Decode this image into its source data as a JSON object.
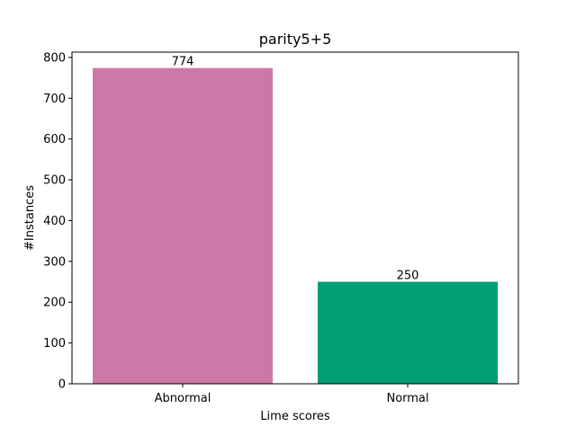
{
  "chart_data": {
    "type": "bar",
    "title": "parity5+5",
    "xlabel": "Lime scores",
    "ylabel": "#Instances",
    "categories": [
      "Abnormal",
      "Normal"
    ],
    "values": [
      774,
      250
    ],
    "bar_colors": [
      "#cc79a7",
      "#009e73"
    ],
    "data_labels": [
      "774",
      "250"
    ],
    "ylim": [
      0,
      813
    ],
    "yticks": [
      0,
      100,
      200,
      300,
      400,
      500,
      600,
      700,
      800
    ],
    "grid": false,
    "legend": "none"
  }
}
